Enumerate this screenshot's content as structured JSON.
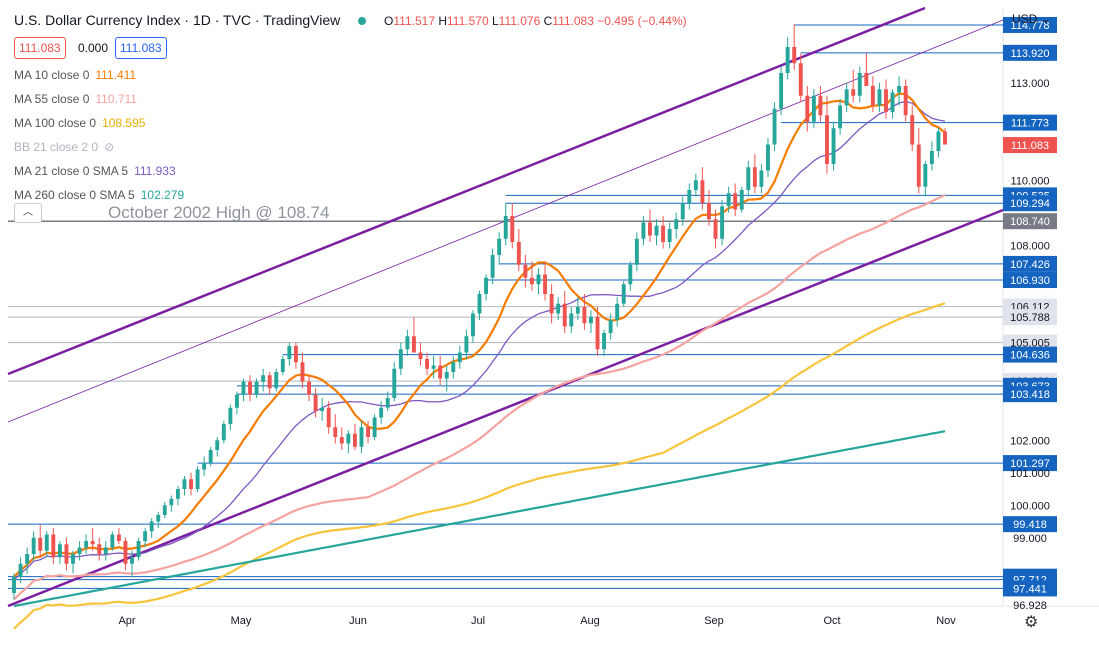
{
  "header": {
    "title": "U.S. Dollar Currency Index · 1D · TVC · TradingView",
    "ohlc": {
      "o_label": "O",
      "o": "111.517",
      "h_label": "H",
      "h": "111.570",
      "l_label": "L",
      "l": "111.076",
      "c_label": "C",
      "c": "111.083",
      "change": "−0.495 (−0.44%)"
    }
  },
  "quote_boxes": {
    "sell": "111.083",
    "spread": "0.000",
    "buy": "111.083"
  },
  "indicators": [
    {
      "label": "MA 10 close 0",
      "value": "111.411",
      "color": "#f57c00"
    },
    {
      "label": "MA 55 close 0",
      "value": "110.711",
      "color": "#f4a3a0"
    },
    {
      "label": "MA 100 close 0",
      "value": "108.595",
      "color": "#e5b000"
    },
    {
      "label": "BB 21 close 2 0",
      "value": "",
      "color": "#b2b5be"
    },
    {
      "label": "MA 21 close 0 SMA 5",
      "value": "111.933",
      "color": "#7e57c2"
    },
    {
      "label": "MA 260 close 0 SMA 5",
      "value": "102.279",
      "color": "#26a69a"
    }
  ],
  "annotation": "October 2002 High @ 108.74",
  "currency_menu": "USD",
  "colors": {
    "up": "#26a69a",
    "down": "#ef5350",
    "ma10": "#f57c00",
    "ma55": "#f4a3a0",
    "ma100": "#f7c53c",
    "ma21": "#7e57c2",
    "ma260": "#26a69a",
    "channel": "#7b1fa2",
    "level": "#1565c0"
  },
  "chart_data": {
    "type": "candlestick",
    "title": "U.S. Dollar Currency Index · 1D · TVC · TradingView",
    "x_tick_labels": [
      "Apr",
      "May",
      "Jun",
      "Jul",
      "Aug",
      "Sep",
      "Oct",
      "Nov"
    ],
    "y_tick_labels": [
      "114.778",
      "113.920",
      "113.000",
      "111.773",
      "111.083",
      "110.000",
      "109.535",
      "109.294",
      "108.740",
      "108.000",
      "107.426",
      "106.930",
      "106.112",
      "105.788",
      "105.005",
      "104.636",
      "103.820",
      "103.673",
      "103.418",
      "102.000",
      "101.297",
      "101.000",
      "100.000",
      "99.418",
      "99.000",
      "97.802",
      "97.712",
      "97.441",
      "96.928"
    ],
    "ylim": [
      96.9,
      115.3
    ],
    "horizontal_levels": [
      114.778,
      113.92,
      111.773,
      109.535,
      109.294,
      107.426,
      106.93,
      104.636,
      103.673,
      103.418,
      101.297,
      99.418,
      97.802,
      97.712,
      97.441
    ],
    "grey_levels": [
      108.74,
      106.112,
      105.788,
      105.005,
      103.82
    ],
    "last_price": 111.083,
    "ohlc_series": [
      [
        97.3,
        97.9,
        97.1,
        97.8
      ],
      [
        97.8,
        98.4,
        97.6,
        98.2
      ],
      [
        98.2,
        98.7,
        97.9,
        98.5
      ],
      [
        98.5,
        99.2,
        98.3,
        99.0
      ],
      [
        99.0,
        99.4,
        98.4,
        98.6
      ],
      [
        98.6,
        99.2,
        98.4,
        99.1
      ],
      [
        99.1,
        99.3,
        98.2,
        98.4
      ],
      [
        98.4,
        98.9,
        98.2,
        98.8
      ],
      [
        98.8,
        99.0,
        98.0,
        98.2
      ],
      [
        98.2,
        98.6,
        97.9,
        98.5
      ],
      [
        98.5,
        98.9,
        98.3,
        98.7
      ],
      [
        98.7,
        99.1,
        98.5,
        98.9
      ],
      [
        98.9,
        99.3,
        98.6,
        98.8
      ],
      [
        98.8,
        99.0,
        98.3,
        98.5
      ],
      [
        98.5,
        98.9,
        98.3,
        98.7
      ],
      [
        98.7,
        99.2,
        98.6,
        99.1
      ],
      [
        99.1,
        99.3,
        98.8,
        98.9
      ],
      [
        98.9,
        99.0,
        98.0,
        98.2
      ],
      [
        98.2,
        98.6,
        97.8,
        98.4
      ],
      [
        98.4,
        99.0,
        98.3,
        98.9
      ],
      [
        98.9,
        99.3,
        98.7,
        99.2
      ],
      [
        99.2,
        99.6,
        99.0,
        99.5
      ],
      [
        99.5,
        99.8,
        99.3,
        99.7
      ],
      [
        99.7,
        100.1,
        99.6,
        100.0
      ],
      [
        100.0,
        100.3,
        99.8,
        100.2
      ],
      [
        100.2,
        100.6,
        100.0,
        100.5
      ],
      [
        100.5,
        100.9,
        100.3,
        100.8
      ],
      [
        100.8,
        101.0,
        100.3,
        100.5
      ],
      [
        100.5,
        101.2,
        100.4,
        101.1
      ],
      [
        101.1,
        101.5,
        100.9,
        101.3
      ],
      [
        101.3,
        101.8,
        101.2,
        101.7
      ],
      [
        101.7,
        102.1,
        101.5,
        102.0
      ],
      [
        102.0,
        102.6,
        101.9,
        102.5
      ],
      [
        102.5,
        103.1,
        102.3,
        103.0
      ],
      [
        103.0,
        103.5,
        102.8,
        103.4
      ],
      [
        103.4,
        103.9,
        103.2,
        103.8
      ],
      [
        103.8,
        104.0,
        103.2,
        103.4
      ],
      [
        103.4,
        103.9,
        103.3,
        103.8
      ],
      [
        103.8,
        104.2,
        103.5,
        104.0
      ],
      [
        104.0,
        104.1,
        103.4,
        103.6
      ],
      [
        103.6,
        104.2,
        103.5,
        104.1
      ],
      [
        104.1,
        104.6,
        104.0,
        104.5
      ],
      [
        104.5,
        105.0,
        104.3,
        104.9
      ],
      [
        104.9,
        105.0,
        104.2,
        104.4
      ],
      [
        104.4,
        104.7,
        103.6,
        103.8
      ],
      [
        103.8,
        104.0,
        103.2,
        103.4
      ],
      [
        103.4,
        103.6,
        102.7,
        102.9
      ],
      [
        102.9,
        103.3,
        102.6,
        103.0
      ],
      [
        103.0,
        103.2,
        102.2,
        102.4
      ],
      [
        102.4,
        102.8,
        101.9,
        102.1
      ],
      [
        102.1,
        102.4,
        101.7,
        101.9
      ],
      [
        101.9,
        102.3,
        101.6,
        102.2
      ],
      [
        102.2,
        102.5,
        101.7,
        101.8
      ],
      [
        101.8,
        102.6,
        101.6,
        102.4
      ],
      [
        102.4,
        102.6,
        101.9,
        102.1
      ],
      [
        102.1,
        102.8,
        102.0,
        102.7
      ],
      [
        102.7,
        103.2,
        102.5,
        103.0
      ],
      [
        103.0,
        103.5,
        102.9,
        103.3
      ],
      [
        103.3,
        104.4,
        103.2,
        104.2
      ],
      [
        104.2,
        105.0,
        104.0,
        104.8
      ],
      [
        104.8,
        105.4,
        104.6,
        105.2
      ],
      [
        105.2,
        105.8,
        105.0,
        104.7
      ],
      [
        104.7,
        105.0,
        104.3,
        104.5
      ],
      [
        104.5,
        104.7,
        104.0,
        104.2
      ],
      [
        104.2,
        104.6,
        103.9,
        104.3
      ],
      [
        104.3,
        104.6,
        103.7,
        103.9
      ],
      [
        103.9,
        104.3,
        103.5,
        104.1
      ],
      [
        104.1,
        104.6,
        103.9,
        104.4
      ],
      [
        104.4,
        104.9,
        104.2,
        104.7
      ],
      [
        104.7,
        105.4,
        104.5,
        105.2
      ],
      [
        105.2,
        106.0,
        105.0,
        105.9
      ],
      [
        105.9,
        106.6,
        105.7,
        106.5
      ],
      [
        106.5,
        107.1,
        106.3,
        107.0
      ],
      [
        107.0,
        107.9,
        106.8,
        107.7
      ],
      [
        107.7,
        108.4,
        107.4,
        108.2
      ],
      [
        108.2,
        109.3,
        108.0,
        108.9
      ],
      [
        108.9,
        109.3,
        107.9,
        108.1
      ],
      [
        108.1,
        108.5,
        107.2,
        107.4
      ],
      [
        107.4,
        107.7,
        106.7,
        107.0
      ],
      [
        107.0,
        107.5,
        106.6,
        106.8
      ],
      [
        106.8,
        107.3,
        106.5,
        107.1
      ],
      [
        107.1,
        107.5,
        106.3,
        106.5
      ],
      [
        106.5,
        106.8,
        105.6,
        105.9
      ],
      [
        105.9,
        106.4,
        105.7,
        106.2
      ],
      [
        106.2,
        106.6,
        105.3,
        105.5
      ],
      [
        105.5,
        106.1,
        105.3,
        105.9
      ],
      [
        105.9,
        106.4,
        105.7,
        106.1
      ],
      [
        106.1,
        106.5,
        105.4,
        105.6
      ],
      [
        105.6,
        106.0,
        105.3,
        105.8
      ],
      [
        105.8,
        106.1,
        104.6,
        104.8
      ],
      [
        104.8,
        105.4,
        104.6,
        105.3
      ],
      [
        105.3,
        105.9,
        105.1,
        105.7
      ],
      [
        105.7,
        106.4,
        105.5,
        106.2
      ],
      [
        106.2,
        106.9,
        106.1,
        106.8
      ],
      [
        106.8,
        107.5,
        106.6,
        107.4
      ],
      [
        107.4,
        108.4,
        107.2,
        108.2
      ],
      [
        108.2,
        108.9,
        108.0,
        108.7
      ],
      [
        108.7,
        109.1,
        108.1,
        108.3
      ],
      [
        108.3,
        108.8,
        108.0,
        108.6
      ],
      [
        108.6,
        108.9,
        107.9,
        108.1
      ],
      [
        108.1,
        108.7,
        107.9,
        108.5
      ],
      [
        108.5,
        109.0,
        108.2,
        108.8
      ],
      [
        108.8,
        109.5,
        108.6,
        109.3
      ],
      [
        109.3,
        109.9,
        109.1,
        109.7
      ],
      [
        109.7,
        110.2,
        109.5,
        110.0
      ],
      [
        110.0,
        110.4,
        109.1,
        109.3
      ],
      [
        109.3,
        109.7,
        108.6,
        108.8
      ],
      [
        108.8,
        109.1,
        107.9,
        108.2
      ],
      [
        108.2,
        109.4,
        108.0,
        109.2
      ],
      [
        109.2,
        109.8,
        109.0,
        109.6
      ],
      [
        109.6,
        109.9,
        108.9,
        109.1
      ],
      [
        109.1,
        109.8,
        109.0,
        109.7
      ],
      [
        109.7,
        110.6,
        109.5,
        110.4
      ],
      [
        110.4,
        110.8,
        109.6,
        109.8
      ],
      [
        109.8,
        110.5,
        109.6,
        110.3
      ],
      [
        110.3,
        111.3,
        110.1,
        111.1
      ],
      [
        111.1,
        112.4,
        110.9,
        112.2
      ],
      [
        112.2,
        113.5,
        112.0,
        113.3
      ],
      [
        113.3,
        114.4,
        113.1,
        114.1
      ],
      [
        114.1,
        114.8,
        113.4,
        113.6
      ],
      [
        113.6,
        113.9,
        112.4,
        112.6
      ],
      [
        112.6,
        112.9,
        111.5,
        111.8
      ],
      [
        111.8,
        112.8,
        111.6,
        112.6
      ],
      [
        112.6,
        112.9,
        111.8,
        112.0
      ],
      [
        112.0,
        112.6,
        110.2,
        110.5
      ],
      [
        110.5,
        111.8,
        110.3,
        111.6
      ],
      [
        111.6,
        112.5,
        111.4,
        112.3
      ],
      [
        112.3,
        113.0,
        112.1,
        112.8
      ],
      [
        112.8,
        113.4,
        112.4,
        112.6
      ],
      [
        112.6,
        113.5,
        112.4,
        113.3
      ],
      [
        113.3,
        113.9,
        113.0,
        112.9
      ],
      [
        112.9,
        113.2,
        112.1,
        112.3
      ],
      [
        112.3,
        113.0,
        112.1,
        112.8
      ],
      [
        112.8,
        113.1,
        111.9,
        112.1
      ],
      [
        112.1,
        112.8,
        111.9,
        112.7
      ],
      [
        112.7,
        113.2,
        112.3,
        112.9
      ],
      [
        112.9,
        113.1,
        111.8,
        112.0
      ],
      [
        112.0,
        112.3,
        110.9,
        111.1
      ],
      [
        111.1,
        111.6,
        109.6,
        109.8
      ],
      [
        109.8,
        110.6,
        109.5,
        110.5
      ],
      [
        110.5,
        111.2,
        110.3,
        110.9
      ],
      [
        110.9,
        111.6,
        110.7,
        111.5
      ],
      [
        111.5,
        111.6,
        111.1,
        111.1
      ]
    ],
    "series": [
      {
        "name": "MA 10 close 0",
        "value": 111.411
      },
      {
        "name": "MA 55 close 0",
        "value": 110.711
      },
      {
        "name": "MA 100 close 0",
        "value": 108.595
      },
      {
        "name": "MA 21 close 0 SMA 5",
        "value": 111.933
      },
      {
        "name": "MA 260 close 0 SMA 5",
        "value": 102.279
      }
    ],
    "grid": false
  }
}
